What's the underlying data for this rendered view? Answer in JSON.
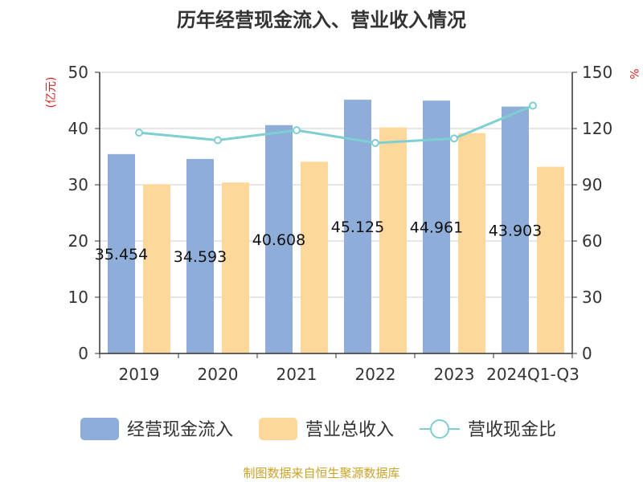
{
  "chart_data": {
    "type": "bar",
    "title": "历年经营现金流入、营业收入情况",
    "categories": [
      "2019",
      "2020",
      "2021",
      "2022",
      "2023",
      "2024Q1-Q3"
    ],
    "series": [
      {
        "name": "经营现金流入",
        "kind": "bar",
        "axis": "left",
        "color": "#8eadd9",
        "values": [
          35.454,
          34.593,
          40.608,
          45.125,
          44.961,
          43.903
        ],
        "labels": [
          "35.454",
          "34.593",
          "40.608",
          "45.125",
          "44.961",
          "43.903"
        ]
      },
      {
        "name": "营业总收入",
        "kind": "bar",
        "axis": "left",
        "color": "#fdd89a",
        "values": [
          30.1,
          30.4,
          34.1,
          40.2,
          39.2,
          33.2
        ]
      },
      {
        "name": "营收现金比",
        "kind": "line",
        "axis": "right",
        "color": "#7ecfd1",
        "values": [
          117.8,
          113.8,
          119.1,
          112.3,
          114.7,
          132.2
        ]
      }
    ],
    "yleft": {
      "unit": "(亿元)",
      "ylim": [
        0,
        50
      ],
      "ticks": [
        0,
        10,
        20,
        30,
        40,
        50
      ]
    },
    "yright": {
      "unit": "%",
      "ylim": [
        0,
        150
      ],
      "ticks": [
        0,
        30,
        60,
        90,
        120,
        150
      ]
    },
    "grid": true,
    "legend": "bottom"
  },
  "source": "制图数据来自恒生聚源数据库"
}
